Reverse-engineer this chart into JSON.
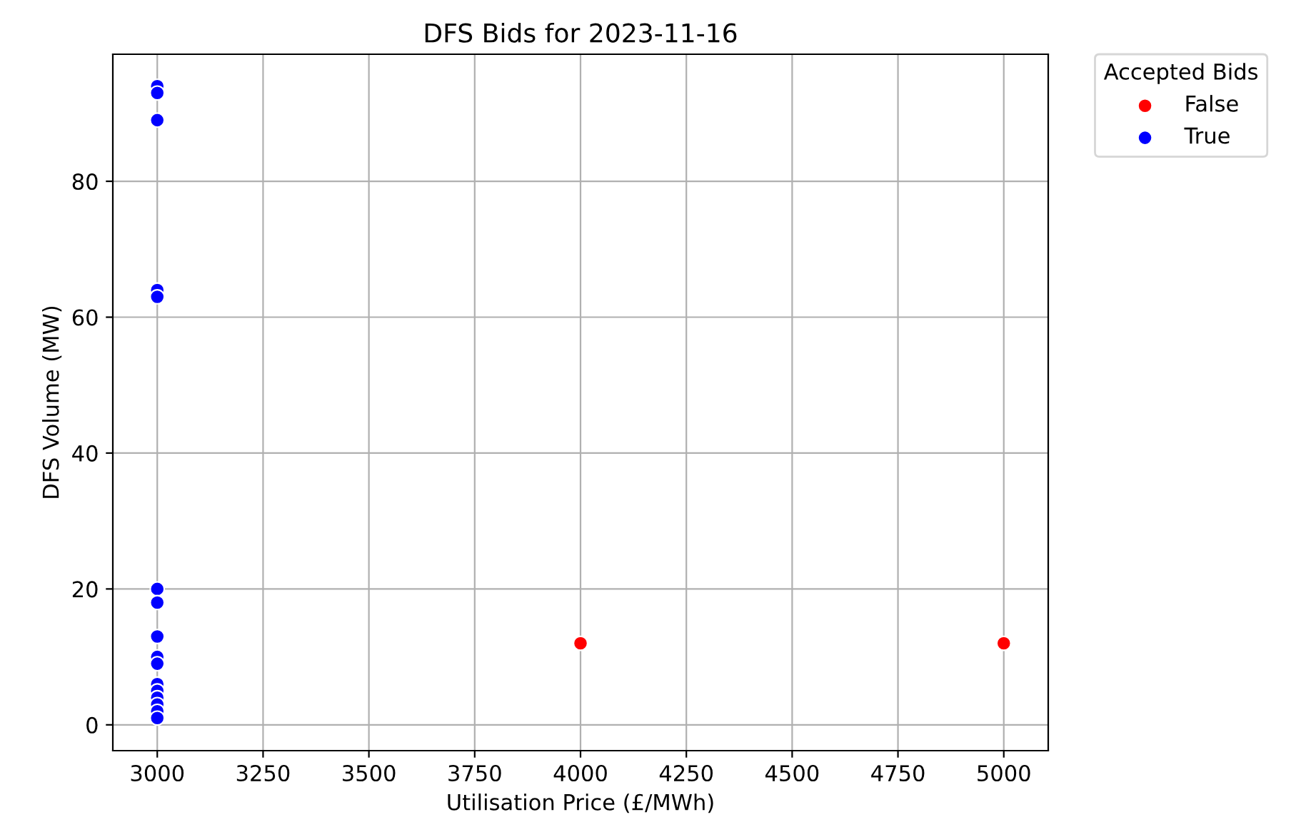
{
  "chart_data": {
    "type": "scatter",
    "title": "DFS Bids for 2023-11-16",
    "xlabel": "Utilisation Price (£/MWh)",
    "ylabel": "DFS Volume (MW)",
    "legend_title": "Accepted Bids",
    "series": [
      {
        "name": "False",
        "color": "#ff0000",
        "x": [
          4000,
          5000
        ],
        "values": [
          12,
          12
        ]
      },
      {
        "name": "True",
        "color": "#0000ff",
        "x": [
          3000,
          3000,
          3000,
          3000,
          3000,
          3000,
          3000,
          3000,
          3000,
          3000,
          3000,
          3000,
          3000,
          3000,
          3000,
          3000
        ],
        "values": [
          94,
          93,
          89,
          64,
          63,
          20,
          18,
          13,
          10,
          9,
          6,
          5,
          4,
          3,
          2,
          1
        ]
      }
    ],
    "xlim": [
      2895,
      5105
    ],
    "ylim": [
      -3.8,
      98.7
    ],
    "xticks": [
      3000,
      3250,
      3500,
      3750,
      4000,
      4250,
      4500,
      4750,
      5000
    ],
    "yticks": [
      0,
      20,
      40,
      60,
      80
    ],
    "grid": true,
    "legend": "top right",
    "marker": "circle"
  }
}
